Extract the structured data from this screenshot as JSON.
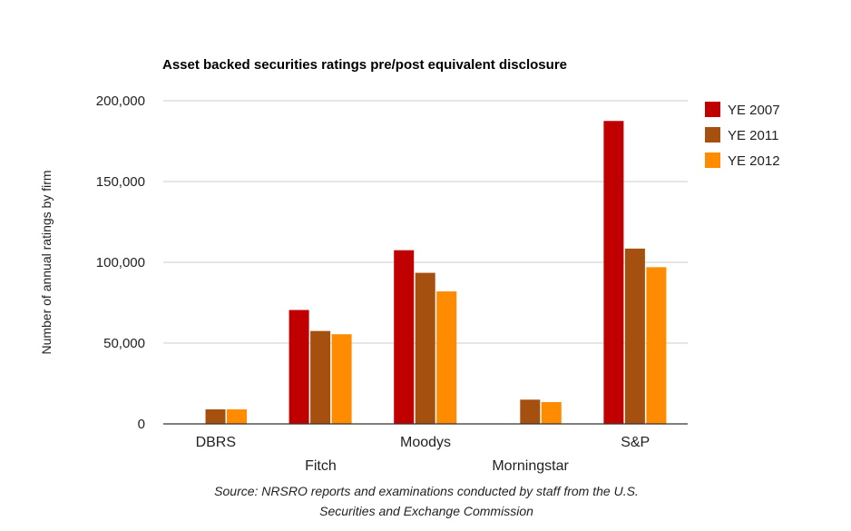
{
  "chart_data": {
    "type": "bar",
    "title": "Asset backed securities ratings pre/post equivalent disclosure",
    "xlabel": "",
    "ylabel": "Number of annual ratings by firm",
    "ylim": [
      0,
      200000
    ],
    "yticks": [
      0,
      50000,
      100000,
      150000,
      200000
    ],
    "ytick_labels": [
      "0",
      "50,000",
      "100,000",
      "150,000",
      "200,000"
    ],
    "grid": true,
    "legend_position": "right",
    "categories": [
      "DBRS",
      "Fitch",
      "Moodys",
      "Morningstar",
      "S&P"
    ],
    "series": [
      {
        "name": "YE 2007",
        "color": "#c00000",
        "values": [
          0,
          70500,
          107500,
          0,
          187500
        ]
      },
      {
        "name": "YE 2011",
        "color": "#a5500f",
        "values": [
          9000,
          57500,
          93500,
          15000,
          108500
        ]
      },
      {
        "name": "YE 2012",
        "color": "#ff8c00",
        "values": [
          9000,
          55500,
          82000,
          13500,
          97000
        ]
      }
    ],
    "source": [
      "Source: NRSRO reports and examinations conducted by staff from the U.S.",
      "Securities and Exchange Commission"
    ]
  }
}
